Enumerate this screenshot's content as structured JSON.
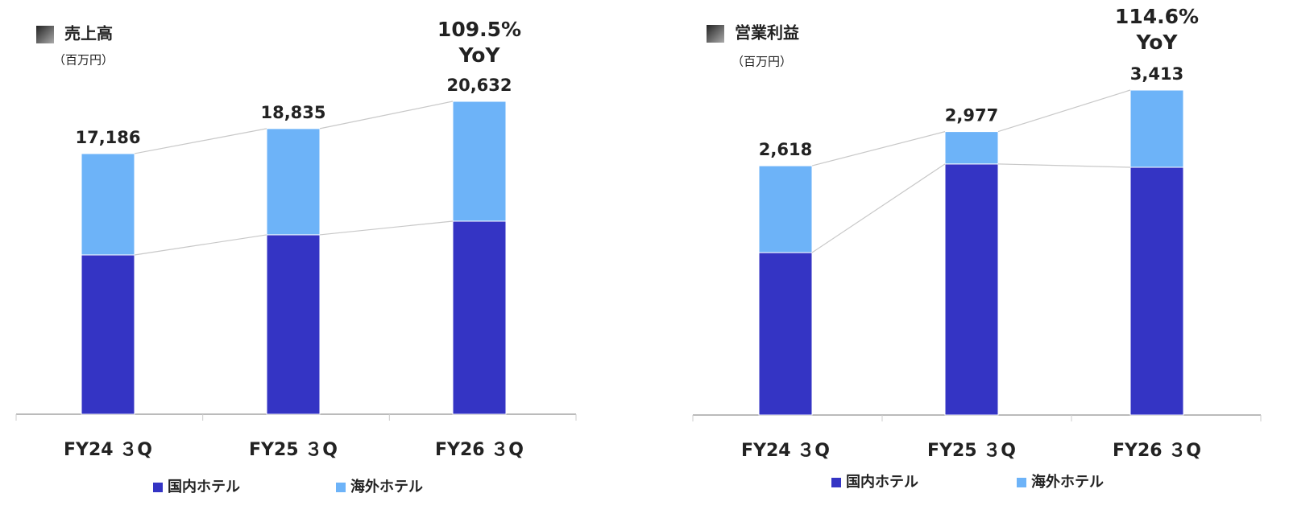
{
  "chart_data": [
    {
      "type": "bar",
      "stacked": true,
      "title": "売上高",
      "unit_label": "（百万円）",
      "categories": [
        "FY24 ３Q",
        "FY25 ３Q",
        "FY26 ３Q"
      ],
      "series": [
        {
          "name": "国内ホテル",
          "color": "#3434c4",
          "values": [
            10503,
            11832,
            12729
          ]
        },
        {
          "name": "海外ホテル",
          "color": "#6db3f8",
          "values": [
            6683,
            7003,
            7903
          ]
        }
      ],
      "totals": [
        17186,
        18835,
        20632
      ],
      "total_labels": [
        "17,186",
        "18,835",
        "20,632"
      ],
      "yoy_value": "109.5%",
      "yoy_label": "YoY"
    },
    {
      "type": "bar",
      "stacked": true,
      "title": "営業利益",
      "unit_label": "（百万円）",
      "categories": [
        "FY24 ３Q",
        "FY25 ３Q",
        "FY26 ３Q"
      ],
      "series": [
        {
          "name": "国内ホテル",
          "color": "#3434c4",
          "values": [
            1706,
            2637,
            2602
          ]
        },
        {
          "name": "海外ホテル",
          "color": "#6db3f8",
          "values": [
            912,
            340,
            811
          ]
        }
      ],
      "totals": [
        2618,
        2977,
        3413
      ],
      "total_labels": [
        "2,618",
        "2,977",
        "3,413"
      ],
      "yoy_value": "114.6%",
      "yoy_label": "YoY"
    }
  ]
}
